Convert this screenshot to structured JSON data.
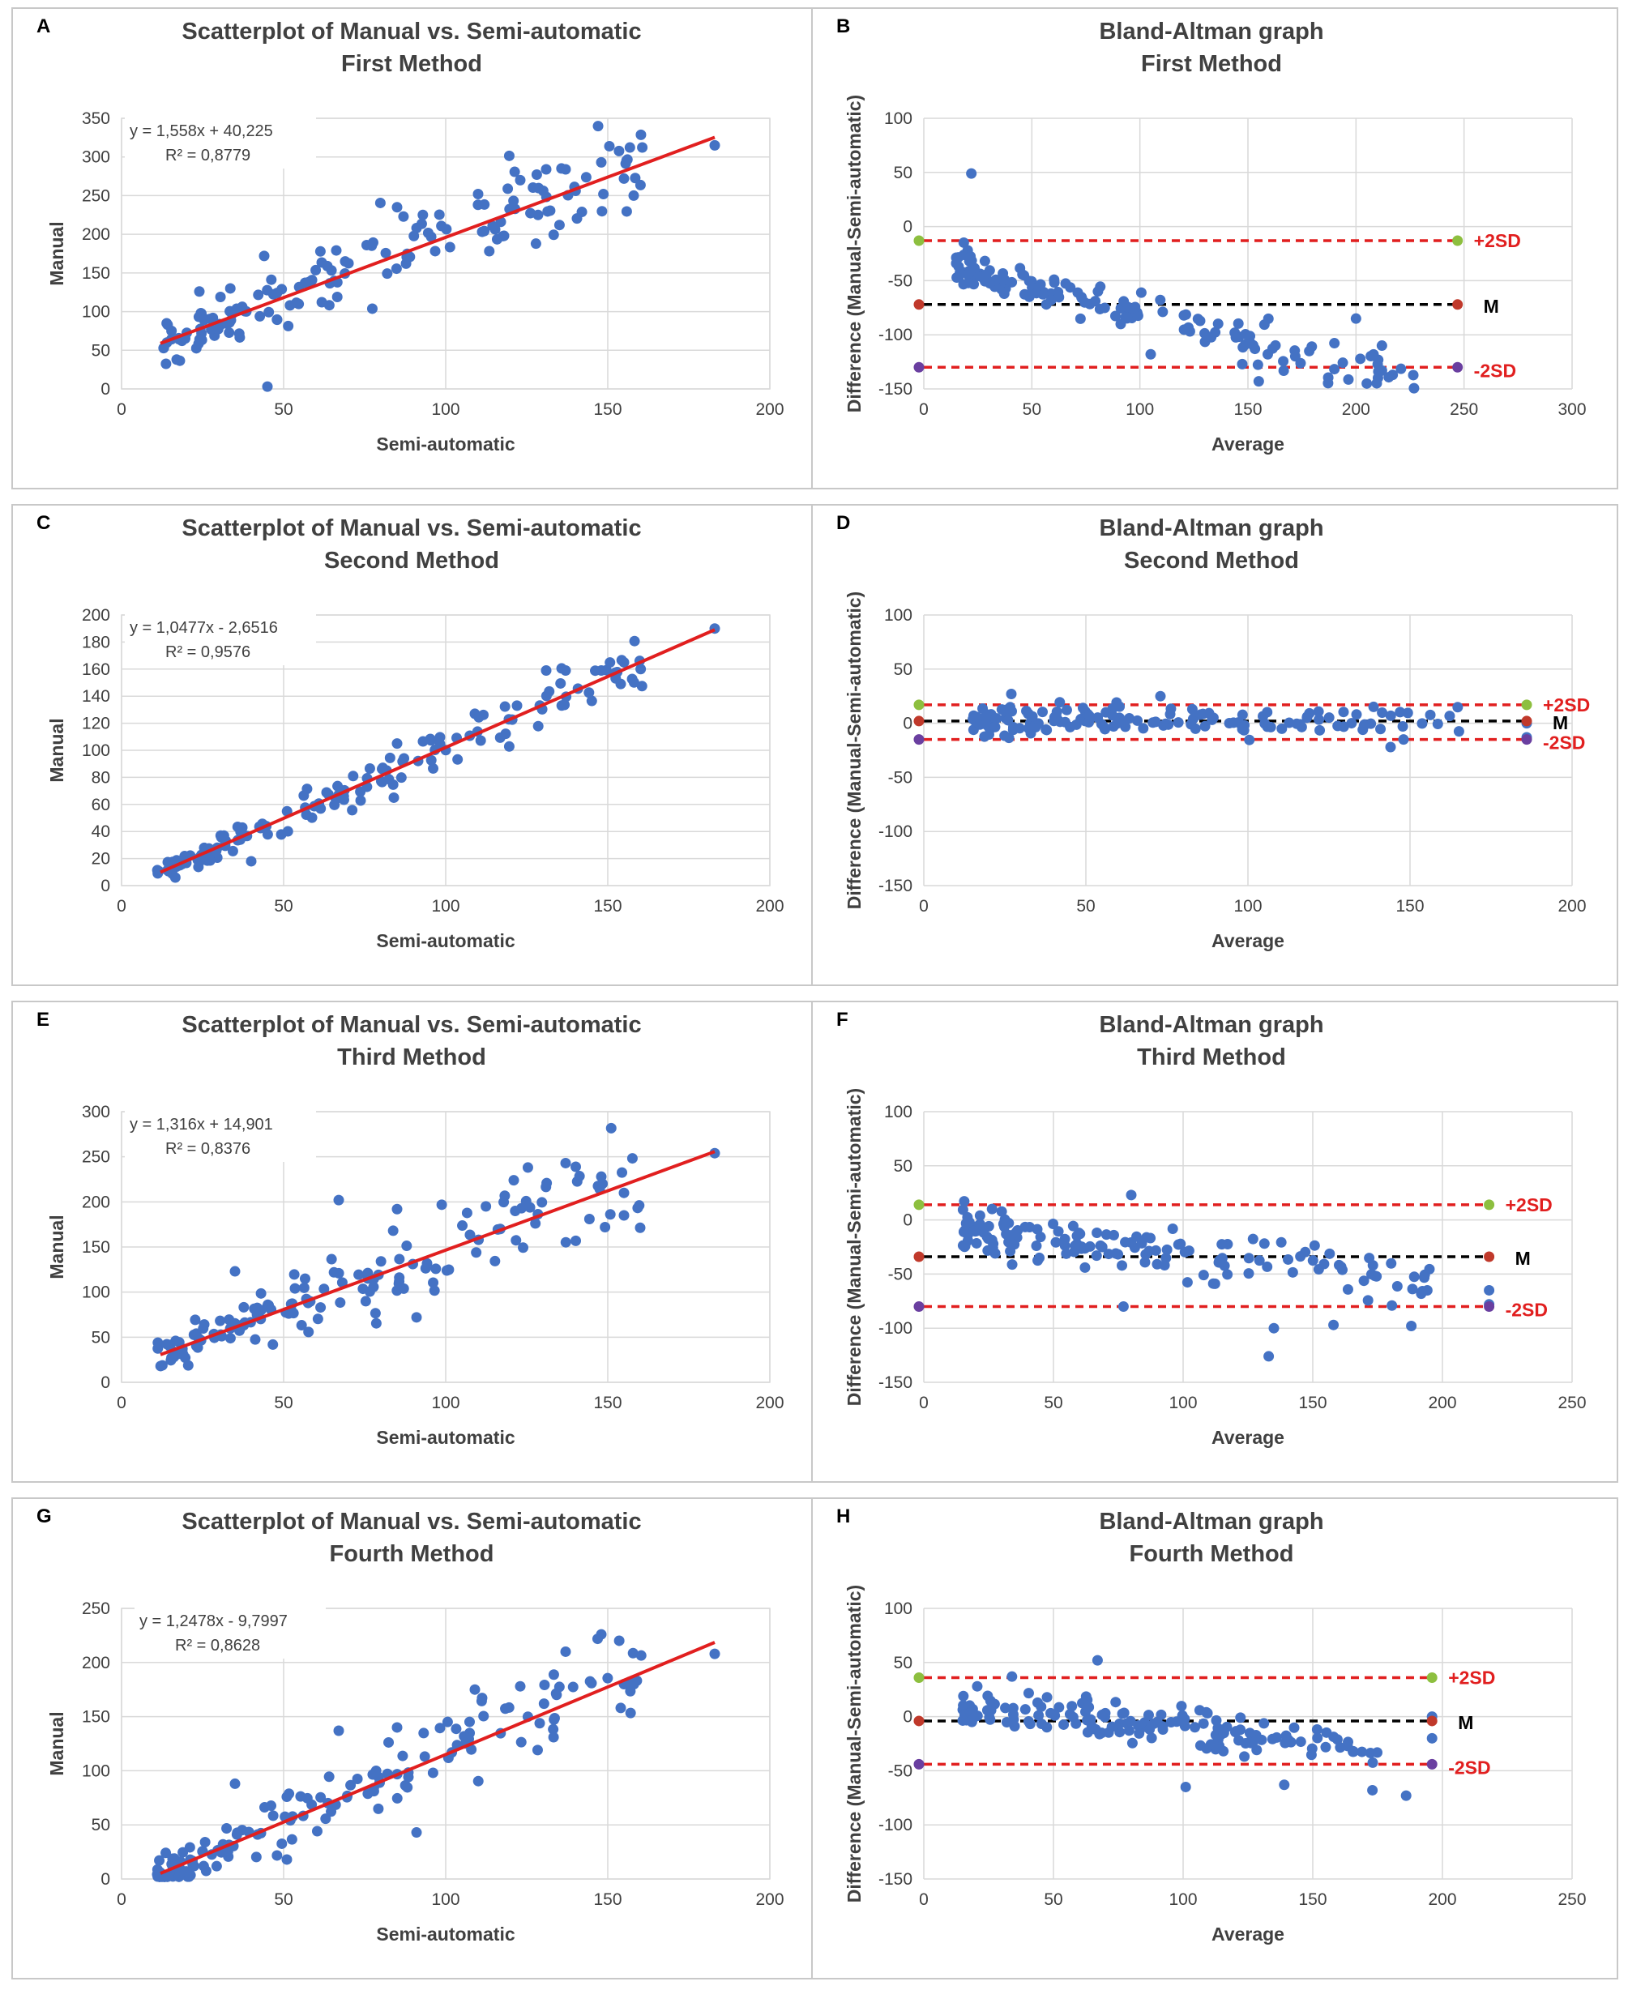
{
  "figure": {
    "colors": {
      "point": "#4472C4",
      "regression": "#E11F1F",
      "sd_line": "#E11F1F",
      "mean_line": "#000000",
      "plus_marker": "#8DBF3F",
      "mean_marker": "#C0392B",
      "minus_marker": "#6A3FA0",
      "text": "#404040"
    }
  },
  "chart_data": [
    {
      "id": "A",
      "type": "scatter",
      "panel_label": "A",
      "title": "Scatterplot of Manual vs. Semi-automatic",
      "subtitle": "First Method",
      "xlabel": "Semi-automatic",
      "ylabel": "Manual",
      "xlim": [
        0,
        200
      ],
      "ylim": [
        0,
        350
      ],
      "xticks": [
        0,
        50,
        100,
        150,
        200
      ],
      "yticks": [
        0,
        50,
        100,
        150,
        200,
        250,
        300,
        350
      ],
      "equation": "y = 1,558x + 40,225",
      "r2": "R² = 0,8779",
      "trendline": {
        "slope": 1.558,
        "intercept": 40.225,
        "x_range": [
          12,
          183
        ]
      },
      "seed": 11,
      "noise": 22,
      "anchor_points": [
        [
          183,
          315
        ],
        [
          45,
          3
        ],
        [
          148,
          293
        ],
        [
          155,
          272
        ],
        [
          158,
          250
        ],
        [
          131,
          284
        ],
        [
          137,
          284
        ],
        [
          85,
          235
        ],
        [
          91,
          208
        ],
        [
          110,
          252
        ],
        [
          123,
          270
        ],
        [
          118,
          198
        ],
        [
          24,
          126
        ],
        [
          44,
          172
        ],
        [
          14,
          60
        ],
        [
          17,
          38
        ]
      ]
    },
    {
      "id": "B",
      "type": "bland-altman",
      "panel_label": "B",
      "title": "Bland-Altman graph",
      "subtitle": "First Method",
      "xlabel": "Average",
      "ylabel": "Difference (Manual-Semi-automatic)",
      "xlim": [
        0,
        300
      ],
      "ylim": [
        -150,
        100
      ],
      "xticks": [
        0,
        50,
        100,
        150,
        200,
        250,
        300
      ],
      "yticks": [
        100,
        50,
        0,
        -50,
        -100,
        -150
      ],
      "mean": -72,
      "upper_sd": -13,
      "lower_sd": -130,
      "line_end_x": 247,
      "labels": {
        "upper": "+2SD",
        "mean": "M",
        "lower": "-2SD"
      },
      "seed": 21,
      "noise": 10,
      "fn": "linear",
      "params": [
        -30,
        -0.5
      ],
      "anchor_points": [
        [
          22,
          49
        ],
        [
          155,
          -143
        ],
        [
          205,
          -145
        ],
        [
          217,
          -137
        ],
        [
          200,
          -85
        ],
        [
          212,
          -110
        ],
        [
          105,
          -118
        ]
      ]
    },
    {
      "id": "C",
      "type": "scatter",
      "panel_label": "C",
      "title": "Scatterplot of Manual vs. Semi-automatic",
      "subtitle": "Second Method",
      "xlabel": "Semi-automatic",
      "ylabel": "Manual",
      "xlim": [
        0,
        200
      ],
      "ylim": [
        0,
        200
      ],
      "xticks": [
        0,
        50,
        100,
        150,
        200
      ],
      "yticks": [
        0,
        20,
        40,
        60,
        80,
        100,
        120,
        140,
        160,
        180,
        200
      ],
      "equation": "y = 1,0477x - 2,6516",
      "r2": "R² = 0,9576",
      "trendline": {
        "slope": 1.0477,
        "intercept": -2.6516,
        "x_range": [
          12,
          183
        ]
      },
      "seed": 31,
      "noise": 6,
      "anchor_points": [
        [
          183,
          190
        ],
        [
          131,
          159
        ],
        [
          137,
          159
        ],
        [
          148,
          159
        ],
        [
          155,
          165
        ],
        [
          154,
          149
        ],
        [
          40,
          18
        ],
        [
          85,
          105
        ],
        [
          84,
          65
        ],
        [
          109,
          127
        ],
        [
          122,
          133
        ]
      ]
    },
    {
      "id": "D",
      "type": "bland-altman",
      "panel_label": "D",
      "title": "Bland-Altman graph",
      "subtitle": "Second Method",
      "xlabel": "Average",
      "ylabel": "Difference (Manual-Semi-automatic)",
      "xlim": [
        0,
        200
      ],
      "ylim": [
        -150,
        100
      ],
      "xticks": [
        0,
        50,
        100,
        150,
        200
      ],
      "yticks": [
        100,
        50,
        0,
        -50,
        -100,
        -150
      ],
      "mean": 2,
      "upper_sd": 17,
      "lower_sd": -15,
      "line_end_x": 186,
      "labels": {
        "upper": "+2SD",
        "mean": "M",
        "lower": "-2SD"
      },
      "seed": 41,
      "noise": 7,
      "fn": "flat",
      "params": [
        2,
        0
      ],
      "anchor_points": [
        [
          27,
          27
        ],
        [
          73,
          25
        ],
        [
          144,
          -22
        ],
        [
          148,
          -15
        ],
        [
          186,
          -13
        ],
        [
          186,
          0
        ]
      ]
    },
    {
      "id": "E",
      "type": "scatter",
      "panel_label": "E",
      "title": "Scatterplot of Manual vs. Semi-automatic",
      "subtitle": "Third Method",
      "xlabel": "Semi-automatic",
      "ylabel": "Manual",
      "xlim": [
        0,
        200
      ],
      "ylim": [
        0,
        300
      ],
      "xticks": [
        0,
        50,
        100,
        150,
        200
      ],
      "yticks": [
        0,
        50,
        100,
        150,
        200,
        250,
        300
      ],
      "equation": "y = 1,316x + 14,901",
      "r2": "R² = 0,8376",
      "trendline": {
        "slope": 1.316,
        "intercept": 14.901,
        "x_range": [
          12,
          183
        ]
      },
      "seed": 51,
      "noise": 18,
      "anchor_points": [
        [
          183,
          254
        ],
        [
          67,
          202
        ],
        [
          137,
          243
        ],
        [
          148,
          228
        ],
        [
          155,
          210
        ],
        [
          155,
          185
        ],
        [
          91,
          72
        ],
        [
          121,
          224
        ],
        [
          35,
          123
        ],
        [
          85,
          192
        ]
      ]
    },
    {
      "id": "F",
      "type": "bland-altman",
      "panel_label": "F",
      "title": "Bland-Altman graph",
      "subtitle": "Third Method",
      "xlabel": "Average",
      "ylabel": "Difference (Manual-Semi-automatic)",
      "xlim": [
        0,
        250
      ],
      "ylim": [
        -150,
        100
      ],
      "xticks": [
        0,
        50,
        100,
        150,
        200,
        250
      ],
      "yticks": [
        100,
        50,
        0,
        -50,
        -100,
        -150
      ],
      "mean": -34,
      "upper_sd": 14,
      "lower_sd": -80,
      "line_end_x": 218,
      "labels": {
        "upper": "+2SD",
        "mean": "M",
        "lower": "-2SD"
      },
      "seed": 61,
      "noise": 12,
      "fn": "linear",
      "params": [
        -8,
        -0.25
      ],
      "anchor_points": [
        [
          80,
          23
        ],
        [
          133,
          -126
        ],
        [
          135,
          -100
        ],
        [
          158,
          -97
        ],
        [
          188,
          -98
        ],
        [
          218,
          -65
        ],
        [
          218,
          -78
        ],
        [
          77,
          -80
        ]
      ]
    },
    {
      "id": "G",
      "type": "scatter",
      "panel_label": "G",
      "title": "Scatterplot of Manual vs. Semi-automatic",
      "subtitle": "Fourth Method",
      "xlabel": "Semi-automatic",
      "ylabel": "Manual",
      "xlim": [
        0,
        200
      ],
      "ylim": [
        0,
        250
      ],
      "xticks": [
        0,
        50,
        100,
        150,
        200
      ],
      "yticks": [
        0,
        50,
        100,
        150,
        200,
        250
      ],
      "equation": "y = 1,2478x - 9,7997",
      "r2": "R² = 0,8628",
      "trendline": {
        "slope": 1.2478,
        "intercept": -9.7997,
        "x_range": [
          12,
          183
        ]
      },
      "seed": 71,
      "noise": 14,
      "anchor_points": [
        [
          183,
          208
        ],
        [
          148,
          226
        ],
        [
          137,
          210
        ],
        [
          155,
          180
        ],
        [
          154,
          158
        ],
        [
          67,
          137
        ],
        [
          85,
          140
        ],
        [
          91,
          43
        ],
        [
          109,
          175
        ],
        [
          123,
          178
        ],
        [
          35,
          88
        ],
        [
          51,
          18
        ]
      ]
    },
    {
      "id": "H",
      "type": "bland-altman",
      "panel_label": "H",
      "title": "Bland-Altman graph",
      "subtitle": "Fourth Method",
      "xlabel": "Average",
      "ylabel": "Difference (Manual-Semi-automatic)",
      "xlim": [
        0,
        250
      ],
      "ylim": [
        -150,
        100
      ],
      "xticks": [
        0,
        50,
        100,
        150,
        200,
        250
      ],
      "yticks": [
        100,
        50,
        0,
        -50,
        -100,
        -150
      ],
      "mean": -4,
      "upper_sd": 36,
      "lower_sd": -44,
      "line_end_x": 196,
      "labels": {
        "upper": "+2SD",
        "mean": "M",
        "lower": "-2SD"
      },
      "seed": 81,
      "noise": 11,
      "fn": "linear",
      "params": [
        10,
        -0.2
      ],
      "anchor_points": [
        [
          67,
          52
        ],
        [
          34,
          37
        ],
        [
          101,
          -65
        ],
        [
          173,
          -68
        ],
        [
          186,
          -73
        ],
        [
          196,
          -20
        ],
        [
          196,
          0
        ],
        [
          139,
          -63
        ]
      ]
    }
  ]
}
